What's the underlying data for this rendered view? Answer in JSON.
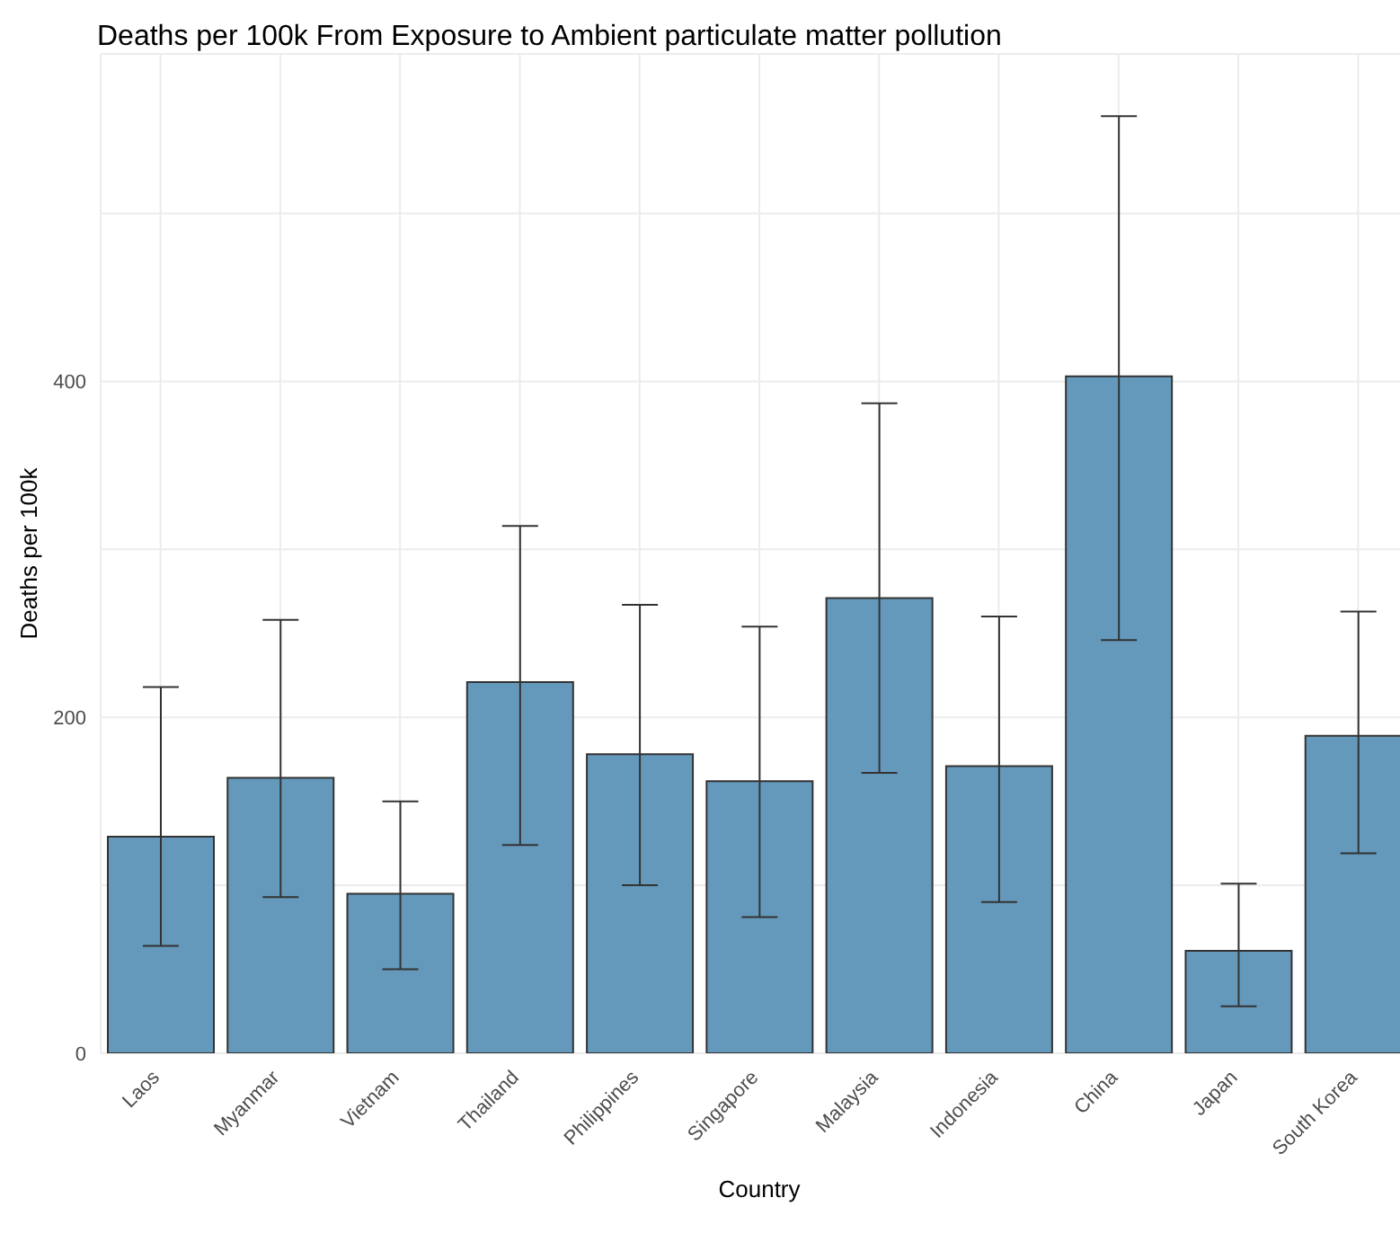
{
  "chart_data": {
    "type": "bar",
    "title": "Deaths per 100k From Exposure to Ambient particulate matter pollution",
    "xlabel": "Country",
    "ylabel": "Deaths per 100k",
    "categories": [
      "Laos",
      "Myanmar",
      "Vietnam",
      "Thailand",
      "Philippines",
      "Singapore",
      "Malaysia",
      "Indonesia",
      "China",
      "Japan",
      "South Korea"
    ],
    "values": [
      129,
      164,
      95,
      221,
      178,
      162,
      271,
      171,
      403,
      61,
      189
    ],
    "errors": [
      [
        64,
        218
      ],
      [
        93,
        258
      ],
      [
        50,
        150
      ],
      [
        124,
        314
      ],
      [
        100,
        267
      ],
      [
        81,
        254
      ],
      [
        167,
        387
      ],
      [
        90,
        260
      ],
      [
        246,
        558
      ],
      [
        28,
        101
      ],
      [
        119,
        263
      ]
    ],
    "color": "#6499bb",
    "ylim": [
      0,
      595
    ],
    "yticks": [
      0,
      {
        "value": 100,
        "label": null
      },
      200,
      {
        "value": 300,
        "label": null
      },
      400,
      {
        "value": 500,
        "label": null
      }
    ],
    "grid": true
  }
}
